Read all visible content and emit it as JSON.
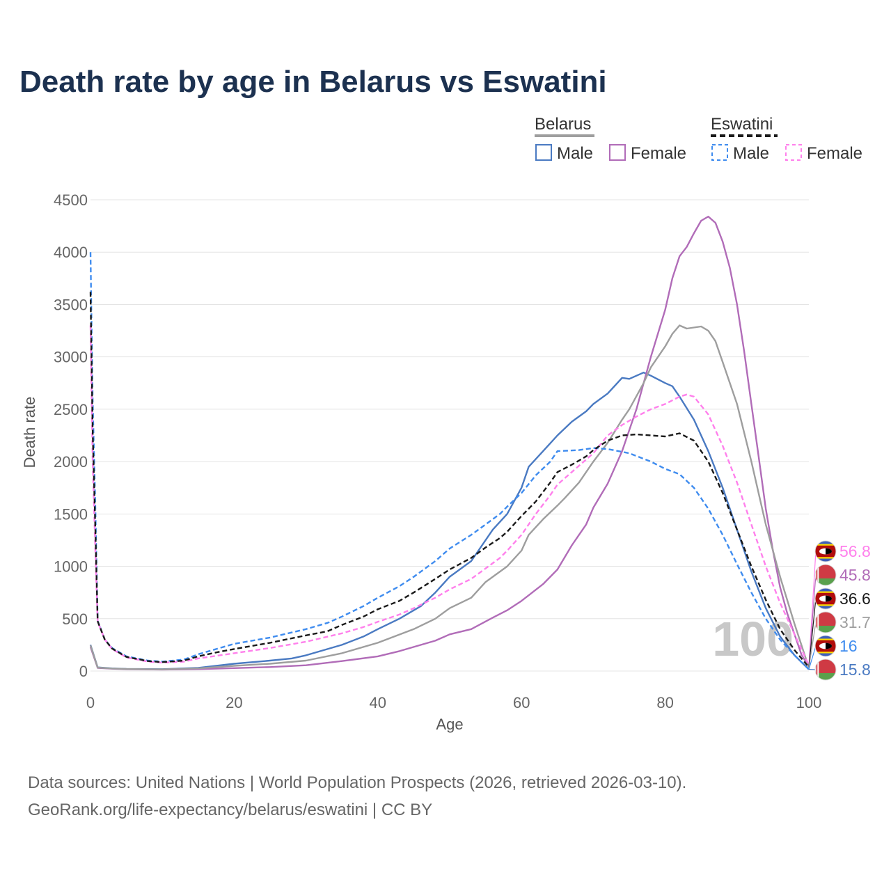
{
  "chart_data": {
    "type": "line",
    "title": "Death rate by age in Belarus vs Eswatini",
    "xlabel": "Age",
    "ylabel": "Death rate",
    "xlim": [
      0,
      100
    ],
    "ylim": [
      0,
      4500
    ],
    "xticks": [
      "0",
      "20",
      "40",
      "60",
      "80",
      "100"
    ],
    "yticks": [
      "0",
      "500",
      "1000",
      "1500",
      "2000",
      "2500",
      "3000",
      "3500",
      "4000",
      "4500"
    ],
    "year_watermark": "100",
    "legend": {
      "groups": [
        {
          "country": "Belarus",
          "items": [
            "Male",
            "Female"
          ]
        },
        {
          "country": "Eswatini",
          "items": [
            "Male",
            "Female"
          ]
        }
      ]
    },
    "series": [
      {
        "name": "Belarus Male",
        "color": "#4a7ac2",
        "dash": "solid",
        "points": [
          [
            0,
            250
          ],
          [
            1,
            35
          ],
          [
            3,
            25
          ],
          [
            5,
            20
          ],
          [
            10,
            18
          ],
          [
            15,
            30
          ],
          [
            20,
            70
          ],
          [
            25,
            100
          ],
          [
            28,
            120
          ],
          [
            30,
            150
          ],
          [
            35,
            250
          ],
          [
            38,
            330
          ],
          [
            40,
            400
          ],
          [
            43,
            500
          ],
          [
            46,
            620
          ],
          [
            48,
            750
          ],
          [
            50,
            900
          ],
          [
            53,
            1050
          ],
          [
            56,
            1350
          ],
          [
            58,
            1500
          ],
          [
            60,
            1750
          ],
          [
            61,
            1950
          ],
          [
            63,
            2100
          ],
          [
            65,
            2250
          ],
          [
            67,
            2380
          ],
          [
            69,
            2480
          ],
          [
            70,
            2550
          ],
          [
            72,
            2650
          ],
          [
            74,
            2800
          ],
          [
            75,
            2790
          ],
          [
            77,
            2850
          ],
          [
            78,
            2820
          ],
          [
            80,
            2750
          ],
          [
            81,
            2720
          ],
          [
            82,
            2620
          ],
          [
            84,
            2400
          ],
          [
            86,
            2100
          ],
          [
            88,
            1750
          ],
          [
            90,
            1350
          ],
          [
            92,
            950
          ],
          [
            94,
            600
          ],
          [
            96,
            330
          ],
          [
            98,
            150
          ],
          [
            100,
            15.8
          ]
        ]
      },
      {
        "name": "Belarus Female",
        "color": "#b16cb8",
        "dash": "solid",
        "points": [
          [
            0,
            230
          ],
          [
            1,
            30
          ],
          [
            3,
            22
          ],
          [
            5,
            17
          ],
          [
            10,
            14
          ],
          [
            15,
            18
          ],
          [
            20,
            28
          ],
          [
            25,
            38
          ],
          [
            30,
            55
          ],
          [
            35,
            95
          ],
          [
            40,
            140
          ],
          [
            43,
            190
          ],
          [
            45,
            230
          ],
          [
            48,
            290
          ],
          [
            50,
            350
          ],
          [
            53,
            400
          ],
          [
            56,
            510
          ],
          [
            58,
            580
          ],
          [
            60,
            670
          ],
          [
            63,
            830
          ],
          [
            65,
            970
          ],
          [
            67,
            1200
          ],
          [
            69,
            1400
          ],
          [
            70,
            1560
          ],
          [
            72,
            1790
          ],
          [
            74,
            2100
          ],
          [
            76,
            2500
          ],
          [
            78,
            3000
          ],
          [
            80,
            3450
          ],
          [
            81,
            3750
          ],
          [
            82,
            3960
          ],
          [
            83,
            4050
          ],
          [
            84,
            4180
          ],
          [
            85,
            4300
          ],
          [
            86,
            4340
          ],
          [
            87,
            4280
          ],
          [
            88,
            4100
          ],
          [
            89,
            3850
          ],
          [
            90,
            3500
          ],
          [
            91,
            3050
          ],
          [
            92,
            2550
          ],
          [
            93,
            2050
          ],
          [
            94,
            1550
          ],
          [
            95,
            1150
          ],
          [
            96,
            800
          ],
          [
            97,
            550
          ],
          [
            98,
            350
          ],
          [
            99,
            150
          ],
          [
            100,
            45.8
          ]
        ]
      },
      {
        "name": "Belarus Total",
        "color": "#9e9e9e",
        "dash": "solid",
        "points": [
          [
            0,
            245
          ],
          [
            1,
            33
          ],
          [
            3,
            24
          ],
          [
            5,
            19
          ],
          [
            10,
            16
          ],
          [
            15,
            25
          ],
          [
            20,
            50
          ],
          [
            25,
            70
          ],
          [
            30,
            100
          ],
          [
            35,
            170
          ],
          [
            40,
            270
          ],
          [
            45,
            400
          ],
          [
            48,
            500
          ],
          [
            50,
            600
          ],
          [
            53,
            700
          ],
          [
            55,
            850
          ],
          [
            58,
            1000
          ],
          [
            60,
            1150
          ],
          [
            61,
            1300
          ],
          [
            63,
            1450
          ],
          [
            65,
            1580
          ],
          [
            66,
            1650
          ],
          [
            68,
            1800
          ],
          [
            70,
            2000
          ],
          [
            72,
            2180
          ],
          [
            74,
            2400
          ],
          [
            75,
            2500
          ],
          [
            77,
            2750
          ],
          [
            78,
            2900
          ],
          [
            80,
            3100
          ],
          [
            81,
            3220
          ],
          [
            82,
            3300
          ],
          [
            83,
            3270
          ],
          [
            85,
            3290
          ],
          [
            86,
            3250
          ],
          [
            87,
            3150
          ],
          [
            88,
            2950
          ],
          [
            90,
            2550
          ],
          [
            92,
            2000
          ],
          [
            94,
            1400
          ],
          [
            96,
            900
          ],
          [
            98,
            450
          ],
          [
            100,
            31.7
          ]
        ]
      },
      {
        "name": "Eswatini Male",
        "color": "#3f8cef",
        "dash": "dashed",
        "points": [
          [
            0,
            4000
          ],
          [
            0.3,
            2600
          ],
          [
            0.7,
            1500
          ],
          [
            1,
            480
          ],
          [
            2,
            300
          ],
          [
            3,
            220
          ],
          [
            5,
            140
          ],
          [
            8,
            100
          ],
          [
            10,
            90
          ],
          [
            13,
            110
          ],
          [
            15,
            160
          ],
          [
            18,
            220
          ],
          [
            20,
            260
          ],
          [
            25,
            320
          ],
          [
            30,
            400
          ],
          [
            33,
            460
          ],
          [
            35,
            520
          ],
          [
            38,
            620
          ],
          [
            40,
            700
          ],
          [
            43,
            810
          ],
          [
            45,
            900
          ],
          [
            48,
            1050
          ],
          [
            50,
            1170
          ],
          [
            53,
            1300
          ],
          [
            55,
            1400
          ],
          [
            57,
            1500
          ],
          [
            58,
            1570
          ],
          [
            60,
            1700
          ],
          [
            62,
            1870
          ],
          [
            64,
            2000
          ],
          [
            65,
            2100
          ],
          [
            68,
            2110
          ],
          [
            70,
            2130
          ],
          [
            72,
            2120
          ],
          [
            75,
            2080
          ],
          [
            78,
            2000
          ],
          [
            80,
            1930
          ],
          [
            82,
            1880
          ],
          [
            84,
            1750
          ],
          [
            86,
            1550
          ],
          [
            88,
            1300
          ],
          [
            90,
            1020
          ],
          [
            92,
            750
          ],
          [
            94,
            500
          ],
          [
            96,
            300
          ],
          [
            98,
            150
          ],
          [
            100,
            16
          ]
        ]
      },
      {
        "name": "Eswatini Female",
        "color": "#ff80ec",
        "dash": "dashed",
        "points": [
          [
            0,
            3300
          ],
          [
            0.3,
            2000
          ],
          [
            0.7,
            1100
          ],
          [
            1,
            470
          ],
          [
            2,
            300
          ],
          [
            3,
            210
          ],
          [
            5,
            130
          ],
          [
            8,
            90
          ],
          [
            10,
            80
          ],
          [
            13,
            90
          ],
          [
            15,
            120
          ],
          [
            18,
            150
          ],
          [
            20,
            170
          ],
          [
            25,
            220
          ],
          [
            30,
            280
          ],
          [
            35,
            360
          ],
          [
            38,
            420
          ],
          [
            40,
            470
          ],
          [
            43,
            540
          ],
          [
            45,
            600
          ],
          [
            48,
            700
          ],
          [
            50,
            780
          ],
          [
            53,
            880
          ],
          [
            55,
            980
          ],
          [
            57,
            1080
          ],
          [
            58,
            1150
          ],
          [
            60,
            1300
          ],
          [
            62,
            1500
          ],
          [
            64,
            1680
          ],
          [
            65,
            1780
          ],
          [
            67,
            1900
          ],
          [
            70,
            2080
          ],
          [
            72,
            2250
          ],
          [
            74,
            2350
          ],
          [
            76,
            2430
          ],
          [
            78,
            2500
          ],
          [
            80,
            2550
          ],
          [
            82,
            2620
          ],
          [
            83,
            2640
          ],
          [
            84,
            2620
          ],
          [
            86,
            2450
          ],
          [
            88,
            2150
          ],
          [
            90,
            1800
          ],
          [
            92,
            1400
          ],
          [
            94,
            1000
          ],
          [
            96,
            650
          ],
          [
            98,
            350
          ],
          [
            100,
            56.8
          ]
        ]
      },
      {
        "name": "Eswatini Total",
        "color": "#1a1a1a",
        "dash": "dashed",
        "points": [
          [
            0,
            3620
          ],
          [
            0.3,
            2300
          ],
          [
            0.7,
            1300
          ],
          [
            1,
            475
          ],
          [
            2,
            300
          ],
          [
            3,
            215
          ],
          [
            5,
            135
          ],
          [
            8,
            95
          ],
          [
            10,
            85
          ],
          [
            13,
            100
          ],
          [
            15,
            140
          ],
          [
            18,
            185
          ],
          [
            20,
            210
          ],
          [
            25,
            270
          ],
          [
            30,
            340
          ],
          [
            33,
            380
          ],
          [
            35,
            440
          ],
          [
            38,
            520
          ],
          [
            40,
            590
          ],
          [
            43,
            670
          ],
          [
            45,
            750
          ],
          [
            48,
            880
          ],
          [
            50,
            970
          ],
          [
            53,
            1080
          ],
          [
            55,
            1180
          ],
          [
            57,
            1270
          ],
          [
            58,
            1330
          ],
          [
            60,
            1480
          ],
          [
            62,
            1620
          ],
          [
            64,
            1800
          ],
          [
            65,
            1900
          ],
          [
            67,
            1970
          ],
          [
            69,
            2050
          ],
          [
            70,
            2110
          ],
          [
            72,
            2200
          ],
          [
            74,
            2250
          ],
          [
            76,
            2260
          ],
          [
            78,
            2250
          ],
          [
            80,
            2240
          ],
          [
            82,
            2270
          ],
          [
            84,
            2200
          ],
          [
            86,
            2000
          ],
          [
            88,
            1700
          ],
          [
            90,
            1350
          ],
          [
            92,
            1000
          ],
          [
            94,
            680
          ],
          [
            96,
            400
          ],
          [
            98,
            200
          ],
          [
            100,
            36.6
          ]
        ]
      }
    ],
    "end_labels": [
      {
        "value": "56.8",
        "color": "#ff80ec",
        "flag": "eswatini"
      },
      {
        "value": "45.8",
        "color": "#b16cb8",
        "flag": "belarus"
      },
      {
        "value": "36.6",
        "color": "#1a1a1a",
        "flag": "eswatini"
      },
      {
        "value": "31.7",
        "color": "#9e9e9e",
        "flag": "belarus"
      },
      {
        "value": "16",
        "color": "#3f8cef",
        "flag": "eswatini"
      },
      {
        "value": "15.8",
        "color": "#4a7ac2",
        "flag": "belarus"
      }
    ]
  },
  "footer": {
    "source_line1": "Data sources: United Nations | World Population Prospects (2026, retrieved 2026-03-10).",
    "source_line2": "GeoRank.org/life-expectancy/belarus/eswatini | CC BY"
  }
}
